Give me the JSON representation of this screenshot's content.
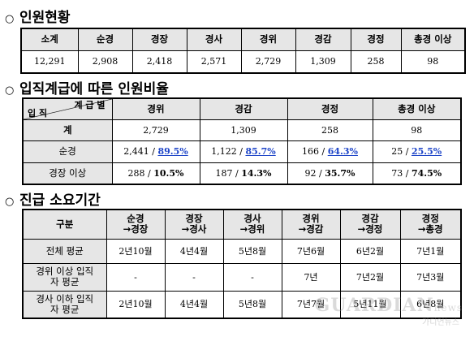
{
  "sec1": {
    "mark": "○",
    "title": "인원현황"
  },
  "table1": {
    "headers": [
      "소계",
      "순경",
      "경장",
      "경사",
      "경위",
      "경감",
      "경정",
      "총경 이상"
    ],
    "values": [
      "12,291",
      "2,908",
      "2,418",
      "2,571",
      "2,729",
      "1,309",
      "258",
      "98"
    ]
  },
  "sec2": {
    "mark": "○",
    "title": "입직계급에 따른 인원비율"
  },
  "table2": {
    "corner_top": "계 급 별",
    "corner_bottom": "입 직",
    "headers": [
      "경위",
      "경감",
      "경정",
      "총경 이상"
    ],
    "total_label": "계",
    "totals": [
      "2,729",
      "1,309",
      "258",
      "98"
    ],
    "rows": [
      {
        "label": "순경",
        "cells": [
          {
            "count": "2,441 / ",
            "pct": "89.5%"
          },
          {
            "count": "1,122 / ",
            "pct": "85.7%"
          },
          {
            "count": "166 / ",
            "pct": "64.3%"
          },
          {
            "count": "25 / ",
            "pct": "25.5%"
          }
        ]
      },
      {
        "label": "경장 이상",
        "cells": [
          {
            "count": "288 / ",
            "pct": "10.5%"
          },
          {
            "count": "187 / ",
            "pct": "14.3%"
          },
          {
            "count": "92 / ",
            "pct": "35.7%"
          },
          {
            "count": "73 / ",
            "pct": "74.5%"
          }
        ]
      }
    ]
  },
  "sec3": {
    "mark": "○",
    "title": "진급 소요기간"
  },
  "table3": {
    "col0": "구분",
    "headers": [
      {
        "l1": "순경",
        "l2": "→경장"
      },
      {
        "l1": "경장",
        "l2": "→경사"
      },
      {
        "l1": "경사",
        "l2": "→경위"
      },
      {
        "l1": "경위",
        "l2": "→경감"
      },
      {
        "l1": "경감",
        "l2": "→경정"
      },
      {
        "l1": "경정",
        "l2": "→총경"
      }
    ],
    "rows": [
      {
        "l1": "전체 평균",
        "l2": "",
        "cells": [
          "2년10월",
          "4년4월",
          "5년8월",
          "7년6월",
          "6년2월",
          "7년1월"
        ]
      },
      {
        "l1": "경위 이상 입직",
        "l2": "자 평균",
        "cells": [
          "-",
          "-",
          "-",
          "7년",
          "7년2월",
          "7년3월"
        ]
      },
      {
        "l1": "경사 이하 입직",
        "l2": "자 평균",
        "cells": [
          "2년10월",
          "4년4월",
          "5년8월",
          "7년7월",
          "5년11월",
          "6년8월"
        ]
      }
    ]
  },
  "watermark": {
    "main": "GUARDIAN",
    "suffix": "news",
    "sub": "가디언뉴스"
  }
}
